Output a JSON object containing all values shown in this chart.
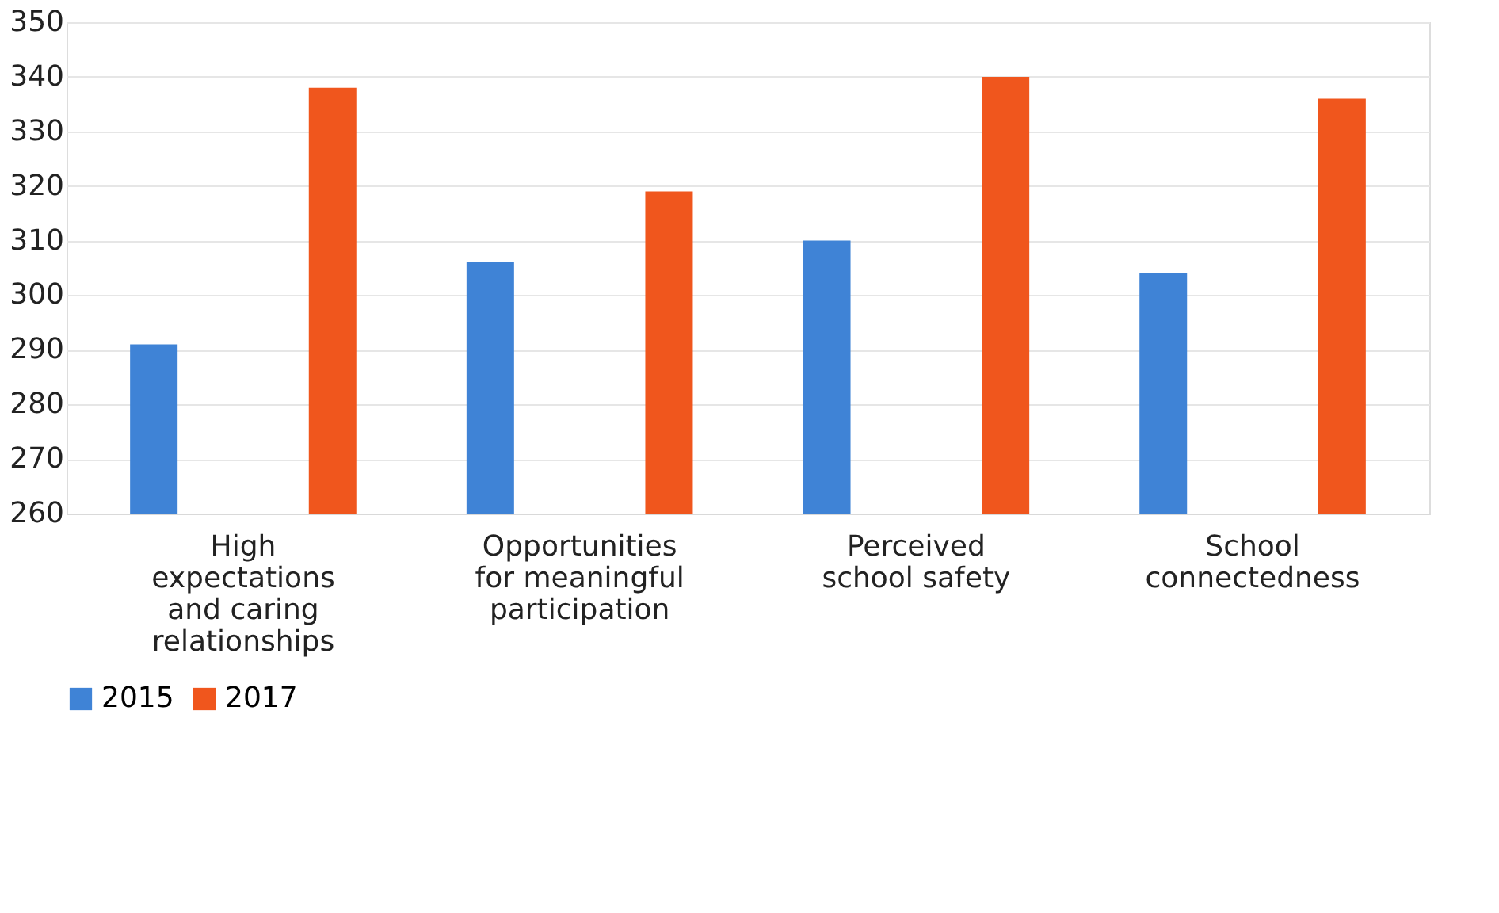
{
  "chart_data": {
    "type": "bar",
    "categories": [
      "High expectations and caring relationships",
      "Opportunities for meaningful participation",
      "Perceived school safety",
      "School connectedness"
    ],
    "series": [
      {
        "name": "2015",
        "color": "#3f83d6",
        "values": [
          291,
          306,
          310,
          304
        ]
      },
      {
        "name": "2017",
        "color": "#f0561d",
        "values": [
          338,
          319,
          340,
          336
        ]
      }
    ],
    "ylim": [
      260,
      350
    ],
    "yticks": [
      260,
      270,
      280,
      290,
      300,
      310,
      320,
      330,
      340,
      350
    ],
    "grid": "y",
    "legend": "bottom"
  }
}
